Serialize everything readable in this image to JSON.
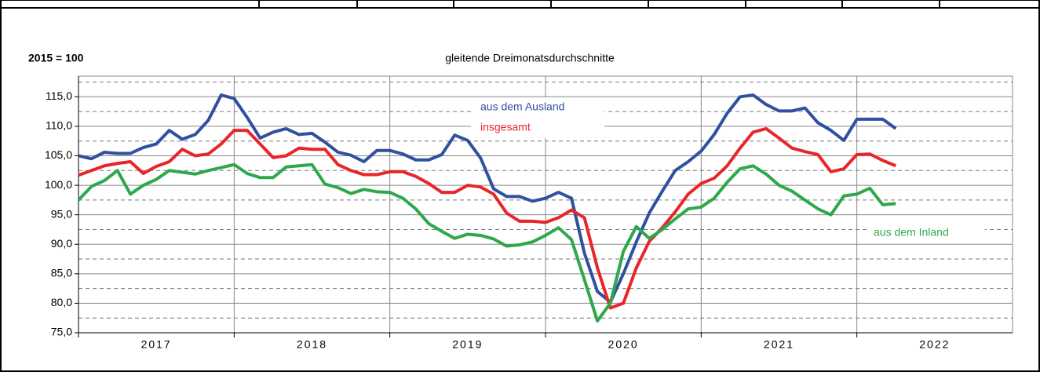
{
  "chart_data": {
    "type": "line",
    "y_unit_label": "2015 = 100",
    "subtitle": "gleitende Dreimonatsdurchschnitte",
    "year_labels": [
      "2017",
      "2018",
      "2019",
      "2020",
      "2021",
      "2022"
    ],
    "ylim": [
      75,
      118.5
    ],
    "yticks": [
      {
        "value": 75,
        "label": "75,0"
      },
      {
        "value": 80,
        "label": "80,0"
      },
      {
        "value": 85,
        "label": "85,0"
      },
      {
        "value": 90,
        "label": "90,0"
      },
      {
        "value": 95,
        "label": "95,0"
      },
      {
        "value": 100,
        "label": "100,0"
      },
      {
        "value": 105,
        "label": "105,0"
      },
      {
        "value": 110,
        "label": "110,0"
      },
      {
        "value": 115,
        "label": "115,0"
      }
    ],
    "minor_yticks": [
      77.5,
      82.5,
      87.5,
      92.5,
      97.5,
      102.5,
      107.5,
      112.5,
      117.5
    ],
    "grid": true,
    "series": [
      {
        "name": "aus dem Ausland",
        "color": "#3050a0",
        "values": [
          105.0,
          104.5,
          105.6,
          105.4,
          105.4,
          106.4,
          107.0,
          109.3,
          107.8,
          108.6,
          111.0,
          115.3,
          114.7,
          111.5,
          108.0,
          109.0,
          109.6,
          108.6,
          108.8,
          107.3,
          105.6,
          105.1,
          104.0,
          105.9,
          105.9,
          105.3,
          104.3,
          104.3,
          105.2,
          108.5,
          107.6,
          104.6,
          99.4,
          98.1,
          98.1,
          97.3,
          97.8,
          98.8,
          97.8,
          88.5,
          82.0,
          80.2,
          85.0,
          90.4,
          95.3,
          99.0,
          102.5,
          104.0,
          105.8,
          108.6,
          112.2,
          115.0,
          115.3,
          113.7,
          112.6,
          112.6,
          113.1,
          110.6,
          109.3,
          107.6,
          111.2,
          111.2,
          111.2,
          109.6
        ]
      },
      {
        "name": "insgesamt",
        "color": "#e8262a",
        "values": [
          101.7,
          102.5,
          103.3,
          103.7,
          104.0,
          102.0,
          103.2,
          104.0,
          106.1,
          105.0,
          105.3,
          107.0,
          109.3,
          109.3,
          107.0,
          104.7,
          105.0,
          106.3,
          106.1,
          106.1,
          103.5,
          102.5,
          101.8,
          101.8,
          102.3,
          102.3,
          101.5,
          100.3,
          98.8,
          98.8,
          100.0,
          99.7,
          98.5,
          95.3,
          93.9,
          93.9,
          93.7,
          94.5,
          95.8,
          94.5,
          86.0,
          79.2,
          80.0,
          86.0,
          90.5,
          92.8,
          95.5,
          98.5,
          100.3,
          101.2,
          103.3,
          106.3,
          109.0,
          109.6,
          108.0,
          106.3,
          105.7,
          105.2,
          102.3,
          102.8,
          105.2,
          105.3,
          104.2,
          103.3
        ]
      },
      {
        "name": "aus dem Inland",
        "color": "#2ea84a",
        "values": [
          97.5,
          99.8,
          100.8,
          102.5,
          98.5,
          100.0,
          101.0,
          102.5,
          102.2,
          101.9,
          102.5,
          103.0,
          103.5,
          102.0,
          101.3,
          101.3,
          103.1,
          103.3,
          103.5,
          100.2,
          99.6,
          98.6,
          99.3,
          98.9,
          98.8,
          97.8,
          96.0,
          93.5,
          92.2,
          91.0,
          91.7,
          91.5,
          90.9,
          89.7,
          89.9,
          90.4,
          91.5,
          92.8,
          90.8,
          84.0,
          77.0,
          80.0,
          88.8,
          93.0,
          91.0,
          92.5,
          94.3,
          96.0,
          96.3,
          97.8,
          100.5,
          102.8,
          103.3,
          101.9,
          100.0,
          99.0,
          97.5,
          96.0,
          95.0,
          98.2,
          98.5,
          99.5,
          96.7,
          96.9
        ]
      }
    ]
  }
}
